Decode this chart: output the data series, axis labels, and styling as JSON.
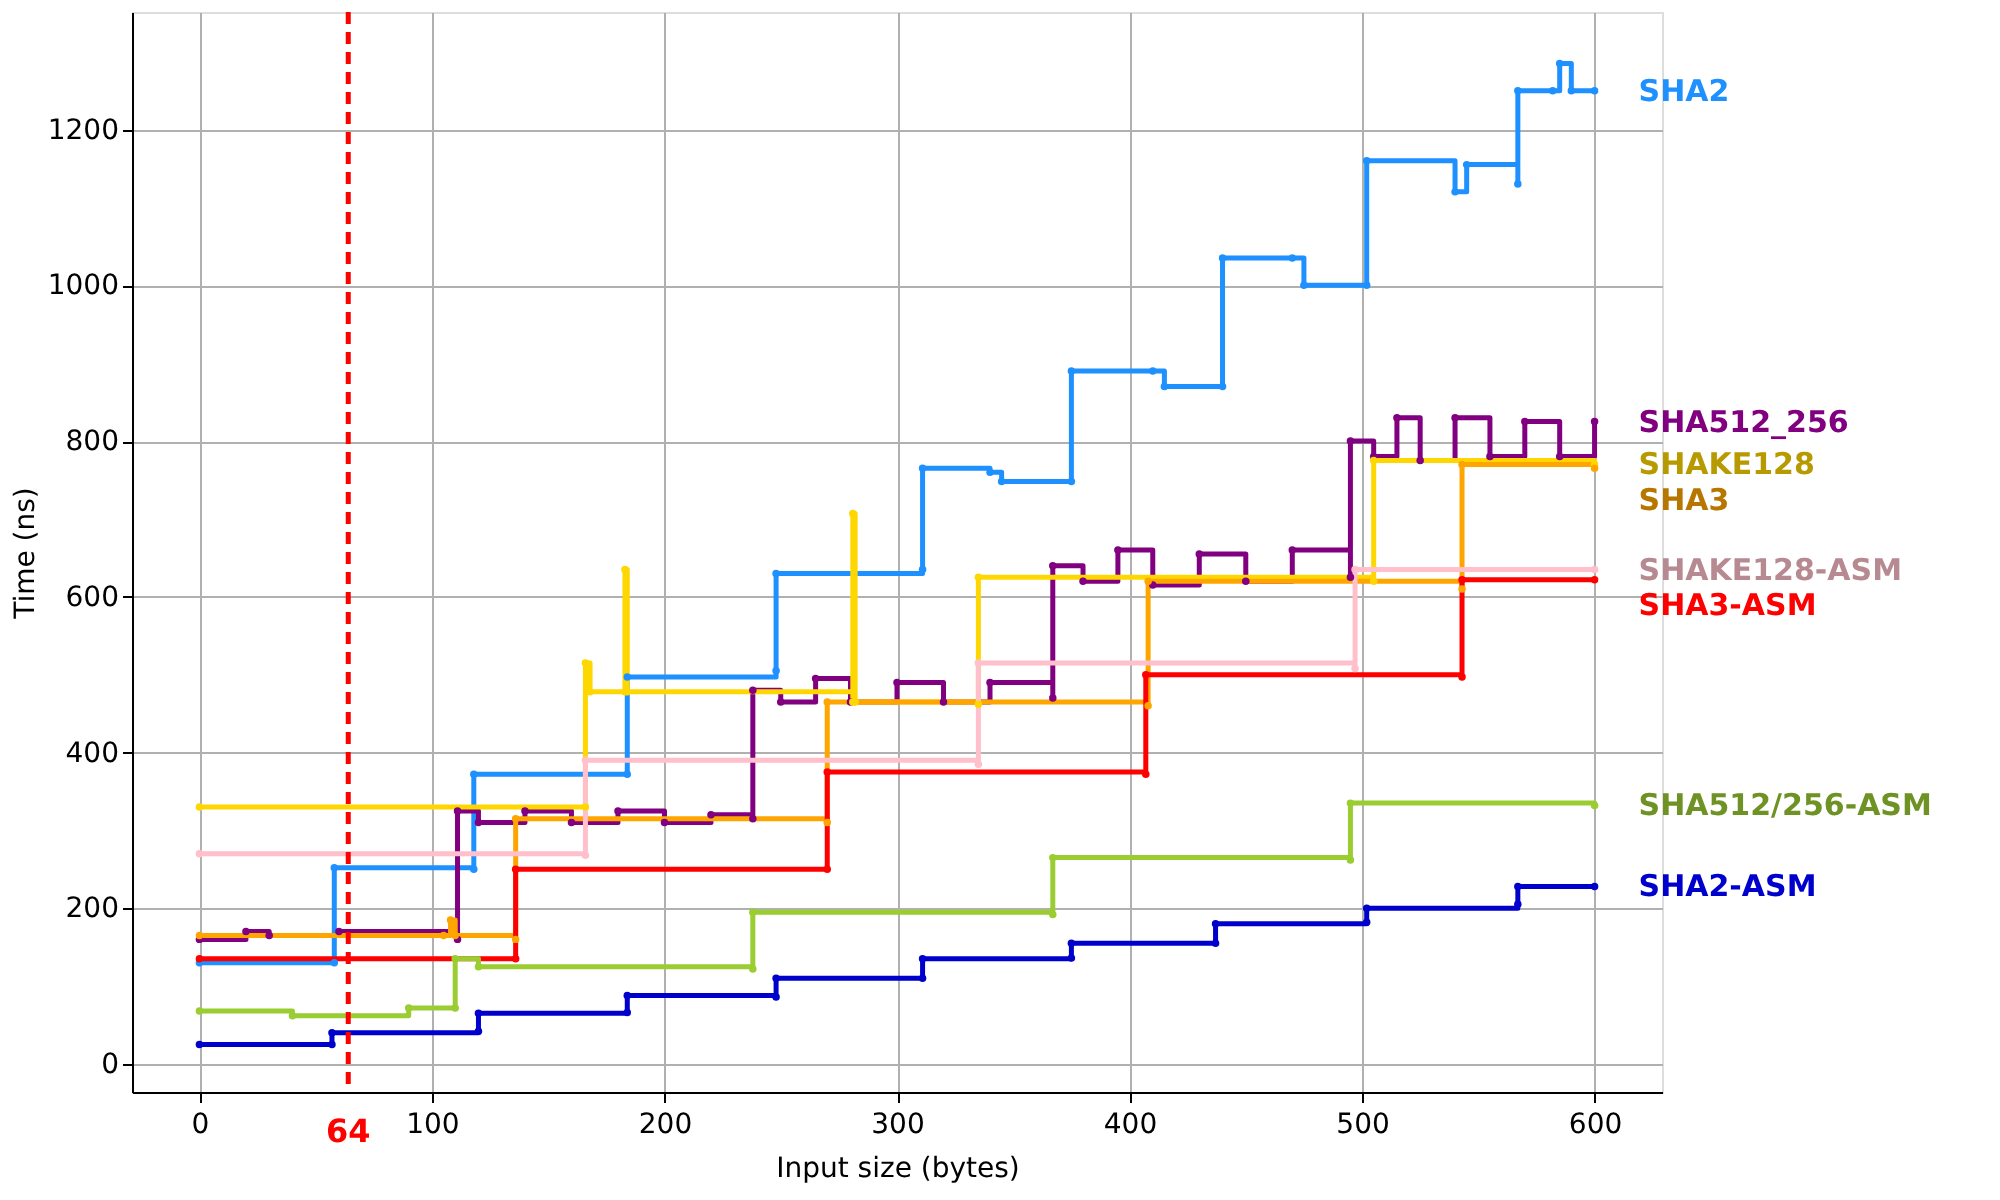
{
  "chart_data": {
    "type": "step",
    "xlabel": "Input size (bytes)",
    "ylabel": "Time (ns)",
    "xlim": [
      -29,
      629
    ],
    "ylim": [
      -36,
      1351
    ],
    "xticks": [
      0,
      100,
      200,
      300,
      400,
      500,
      600
    ],
    "yticks": [
      0,
      200,
      400,
      600,
      800,
      1000,
      1200
    ],
    "grid": true,
    "legend": false,
    "marker": "circle",
    "line_style": "solid",
    "ref_lines": [
      {
        "axis": "x",
        "value": 64,
        "label": "64",
        "color": "#ff0000",
        "line_style": "dashed"
      }
    ],
    "series": [
      {
        "name": "SHA2",
        "color": "#1e90ff",
        "x": [
          0,
          58,
          58,
          118,
          118,
          184,
          184,
          248,
          248,
          311,
          311,
          340,
          345,
          375,
          375,
          410,
          415,
          440,
          440,
          470,
          475,
          502,
          502,
          540,
          545,
          567,
          567,
          582,
          585,
          590,
          600
        ],
        "values": [
          130,
          130,
          252,
          250,
          372,
          372,
          497,
          505,
          630,
          635,
          765,
          760,
          748,
          748,
          890,
          890,
          870,
          870,
          1035,
          1035,
          1000,
          1000,
          1160,
          1120,
          1155,
          1130,
          1250,
          1250,
          1285,
          1250,
          1250
        ]
      },
      {
        "name": "SHA512_256",
        "color": "#800080",
        "x": [
          0,
          20,
          30,
          60,
          111,
          111,
          120,
          140,
          160,
          180,
          200,
          220,
          238,
          238,
          250,
          265,
          280,
          300,
          320,
          340,
          367,
          367,
          380,
          395,
          410,
          430,
          450,
          470,
          495,
          495,
          505,
          515,
          525,
          540,
          555,
          570,
          585,
          600
        ],
        "values": [
          160,
          170,
          165,
          170,
          160,
          325,
          310,
          325,
          310,
          325,
          310,
          320,
          315,
          480,
          465,
          495,
          465,
          490,
          465,
          490,
          470,
          640,
          620,
          660,
          615,
          655,
          620,
          660,
          625,
          800,
          780,
          830,
          775,
          830,
          780,
          825,
          780,
          825
        ]
      },
      {
        "name": "SHAKE128",
        "color": "#ffd700",
        "x": [
          0,
          166,
          166,
          168,
          183,
          183,
          184,
          281,
          281,
          282,
          335,
          335,
          505,
          505,
          600
        ],
        "values": [
          330,
          330,
          515,
          478,
          478,
          635,
          478,
          465,
          707,
          465,
          462,
          625,
          620,
          775,
          770
        ]
      },
      {
        "name": "SHA3",
        "color": "#ffa500",
        "x": [
          0,
          105,
          108,
          110,
          136,
          136,
          270,
          270,
          408,
          408,
          543,
          543,
          600
        ],
        "values": [
          165,
          165,
          185,
          165,
          160,
          315,
          310,
          465,
          460,
          620,
          610,
          770,
          765
        ]
      },
      {
        "name": "SHAKE128-ASM",
        "color": "#ffc0cb",
        "x": [
          0,
          166,
          166,
          335,
          335,
          497,
          497,
          600
        ],
        "values": [
          270,
          268,
          390,
          385,
          515,
          508,
          635,
          635
        ]
      },
      {
        "name": "SHA3-ASM",
        "color": "#ff0000",
        "x": [
          0,
          136,
          136,
          270,
          270,
          407,
          407,
          543,
          543,
          600
        ],
        "values": [
          135,
          135,
          250,
          250,
          375,
          372,
          500,
          497,
          622,
          622
        ]
      },
      {
        "name": "SHA512/256-ASM",
        "color": "#9acd32",
        "x": [
          0,
          40,
          90,
          110,
          110,
          120,
          238,
          238,
          367,
          367,
          495,
          495,
          600
        ],
        "values": [
          68,
          62,
          72,
          72,
          135,
          125,
          122,
          195,
          192,
          265,
          262,
          335,
          332
        ]
      },
      {
        "name": "SHA2-ASM",
        "color": "#0000cd",
        "x": [
          0,
          57,
          57,
          120,
          120,
          184,
          184,
          248,
          248,
          311,
          311,
          375,
          375,
          437,
          437,
          502,
          502,
          567,
          567,
          600
        ],
        "values": [
          25,
          25,
          40,
          42,
          65,
          66,
          88,
          86,
          110,
          110,
          135,
          136,
          155,
          155,
          180,
          182,
          200,
          205,
          228,
          228
        ]
      }
    ]
  }
}
